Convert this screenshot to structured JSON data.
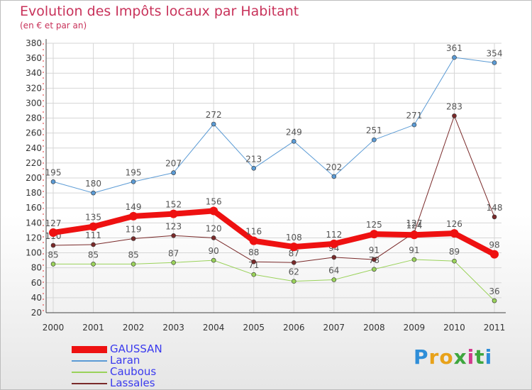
{
  "title": "Evolution des Impôts locaux par Habitant",
  "subtitle": "(en € et par an)",
  "logo": {
    "letters": [
      "P",
      "r",
      "o",
      "x",
      "i",
      "t",
      "i"
    ],
    "colors": [
      "#2f8ed8",
      "#e8a21a",
      "#e8a21a",
      "#3ea63e",
      "#d23a8c",
      "#3ea63e",
      "#2f8ed8"
    ]
  },
  "chart_data": {
    "type": "line",
    "categories": [
      "2000",
      "2001",
      "2002",
      "2003",
      "2004",
      "2005",
      "2006",
      "2007",
      "2008",
      "2009",
      "2010",
      "2011"
    ],
    "ylim": [
      20,
      380
    ],
    "ytick_step": 20,
    "grid": true,
    "series": [
      {
        "name": "Laran",
        "color": "#5b9bd5",
        "width": 1,
        "values": [
          195,
          180,
          195,
          207,
          272,
          213,
          249,
          202,
          251,
          271,
          361,
          354
        ]
      },
      {
        "name": "Caubous",
        "color": "#9ad25a",
        "width": 1,
        "values": [
          85,
          85,
          85,
          87,
          90,
          71,
          62,
          64,
          78,
          91,
          89,
          36
        ]
      },
      {
        "name": "Lassales",
        "color": "#7a2a2a",
        "width": 1,
        "values": [
          110,
          111,
          119,
          123,
          120,
          88,
          87,
          94,
          91,
          127,
          283,
          148
        ]
      },
      {
        "name": "GAUSSAN",
        "color": "#ee1111",
        "width": 8,
        "values": [
          127,
          135,
          149,
          152,
          156,
          116,
          108,
          112,
          125,
          124,
          126,
          98
        ]
      }
    ],
    "legend_order": [
      "GAUSSAN",
      "Laran",
      "Caubous",
      "Lassales"
    ]
  }
}
